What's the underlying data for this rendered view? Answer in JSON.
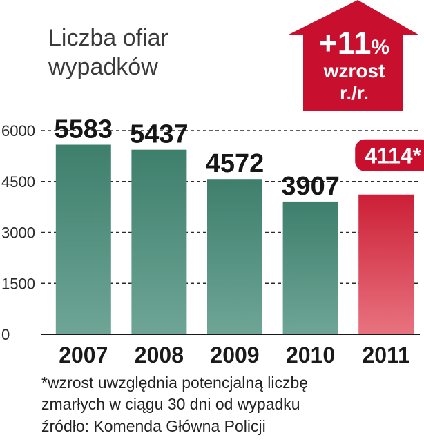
{
  "chart_data": {
    "type": "bar",
    "title_lines": [
      "Liczba ofiar",
      "wypadków"
    ],
    "categories": [
      "2007",
      "2008",
      "2009",
      "2010",
      "2011"
    ],
    "values": [
      5583,
      5437,
      4572,
      3907,
      4114
    ],
    "value_labels": [
      "5583",
      "5437",
      "4572",
      "3907",
      "4114*"
    ],
    "highlight_index": 4,
    "yticks": [
      0,
      1500,
      3000,
      4500,
      6000
    ],
    "ylim": [
      0,
      6000
    ],
    "grid": true,
    "colors": {
      "bar": "#3e7f6c",
      "bar_fade": "#6ea596",
      "highlight": "#cc1f36",
      "highlight_fade": "#e8737f",
      "badge": "#c8102e"
    },
    "badge": {
      "big": "+11",
      "pct": "%",
      "line2": "wzrost",
      "line3": "r./r."
    }
  },
  "footnotes": [
    "*wzrost uwzględnia potencjalną liczbę",
    "zmarłych w ciągu 30 dni od wypadku",
    "źródło: Komenda Główna Policji"
  ]
}
